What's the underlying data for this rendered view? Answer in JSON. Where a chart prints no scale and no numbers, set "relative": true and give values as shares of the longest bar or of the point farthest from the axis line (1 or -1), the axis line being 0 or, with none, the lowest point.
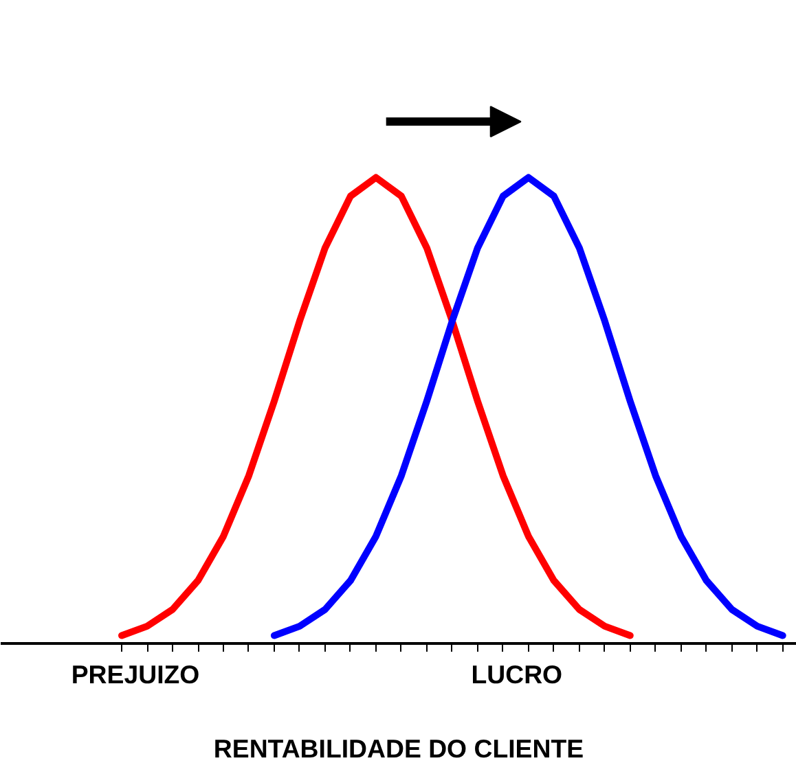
{
  "chart_data": {
    "type": "line",
    "relative": true,
    "xlabel": "RENTABILIDADE DO CLIENTE",
    "annotations": [
      "PREJUIZO",
      "LUCRO"
    ],
    "categories": [
      null,
      null,
      null,
      null,
      null,
      null,
      null,
      null,
      null,
      null,
      null,
      null,
      null,
      null,
      null,
      null,
      null,
      null,
      null,
      null,
      null,
      null,
      null,
      null,
      null,
      null,
      null
    ],
    "series": [
      {
        "color": "#ff0000",
        "values": [
          0.017,
          0.037,
          0.073,
          0.135,
          0.23,
          0.36,
          0.52,
          0.692,
          0.849,
          0.96,
          1,
          0.96,
          0.849,
          0.692,
          0.52,
          0.36,
          0.23,
          0.135,
          0.073,
          0.037,
          0.017,
          null,
          null,
          null,
          null,
          null,
          null
        ]
      },
      {
        "color": "#0000ff",
        "values": [
          null,
          null,
          null,
          null,
          null,
          null,
          0.017,
          0.037,
          0.073,
          0.135,
          0.23,
          0.36,
          0.52,
          0.692,
          0.849,
          0.96,
          1,
          0.96,
          0.849,
          0.692,
          0.52,
          0.36,
          0.23,
          0.135,
          0.073,
          0.037,
          0.017
        ]
      }
    ],
    "grid": false
  }
}
